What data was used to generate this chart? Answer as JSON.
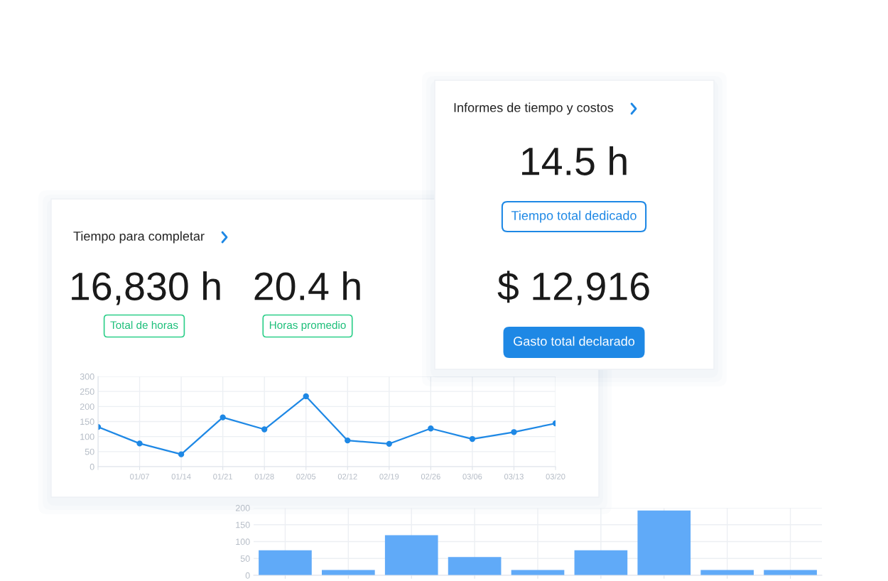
{
  "chart_data": [
    {
      "type": "other",
      "title": "Tiempo para completar",
      "annotations": [
        "16,830 h",
        "Total de horas",
        "20.4 h",
        "Horas promedio"
      ]
    },
    {
      "type": "line",
      "categories": [
        null,
        "01/07",
        "01/14",
        "01/21",
        "01/28",
        "02/05",
        "02/12",
        "02/19",
        "02/26",
        "03/06",
        "03/13",
        "03/20"
      ],
      "series": [
        {
          "color": "#1e88e5",
          "values": [
            132,
            77,
            41,
            164,
            124,
            234,
            87,
            76,
            127,
            92,
            115,
            144
          ]
        }
      ],
      "ylim": [
        0,
        300
      ],
      "yticks": [
        0,
        50,
        100,
        150,
        200,
        250,
        300
      ],
      "grid": true,
      "marker": "circle",
      "line_style": "solid"
    },
    {
      "type": "other",
      "title": "Informes de tiempo y costos",
      "annotations": [
        "14.5 h",
        "Tiempo total dedicado",
        "$ 12,916",
        "Gasto total declarado"
      ]
    },
    {
      "type": "bar",
      "categories": [
        null,
        null,
        null,
        null,
        null,
        null,
        null,
        null,
        null
      ],
      "values": [
        74,
        16,
        119,
        54,
        16,
        74,
        192,
        16,
        16
      ],
      "color": "#60aaf8",
      "ylim": [
        0,
        200
      ],
      "yticks": [
        0,
        50,
        100,
        150,
        200
      ],
      "grid": true
    }
  ]
}
